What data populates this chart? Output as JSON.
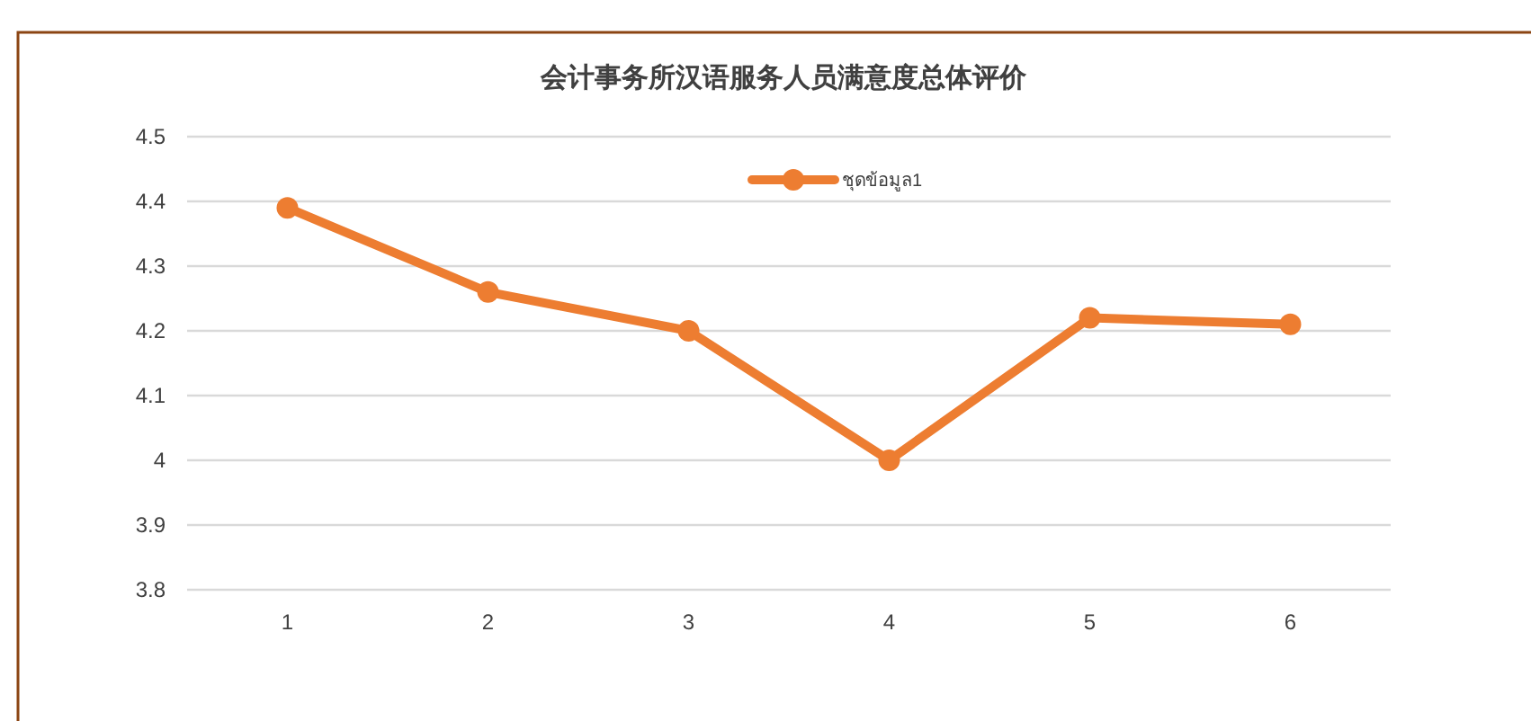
{
  "chart_data": {
    "type": "line",
    "title": "会计事务所汉语服务人员满意度总体评价",
    "categories": [
      "1",
      "2",
      "3",
      "4",
      "5",
      "6"
    ],
    "series": [
      {
        "name": "ชุดข้อมูล1",
        "color": "#ed7d31",
        "values": [
          4.39,
          4.26,
          4.2,
          4.0,
          4.22,
          4.21
        ]
      }
    ],
    "ylim": [
      3.8,
      4.5
    ],
    "yticks": [
      {
        "value": 3.8,
        "label": "3.8"
      },
      {
        "value": 3.9,
        "label": "3.9"
      },
      {
        "value": 4,
        "label": "4"
      },
      {
        "value": 4.1,
        "label": "4.1"
      },
      {
        "value": 4.2,
        "label": "4.2"
      },
      {
        "value": 4.3,
        "label": "4.3"
      },
      {
        "value": 4.4,
        "label": "4.4"
      },
      {
        "value": 4.5,
        "label": "4.5"
      }
    ],
    "grid": "y",
    "legend": "top",
    "marker": "circle",
    "line_style": "solid"
  }
}
